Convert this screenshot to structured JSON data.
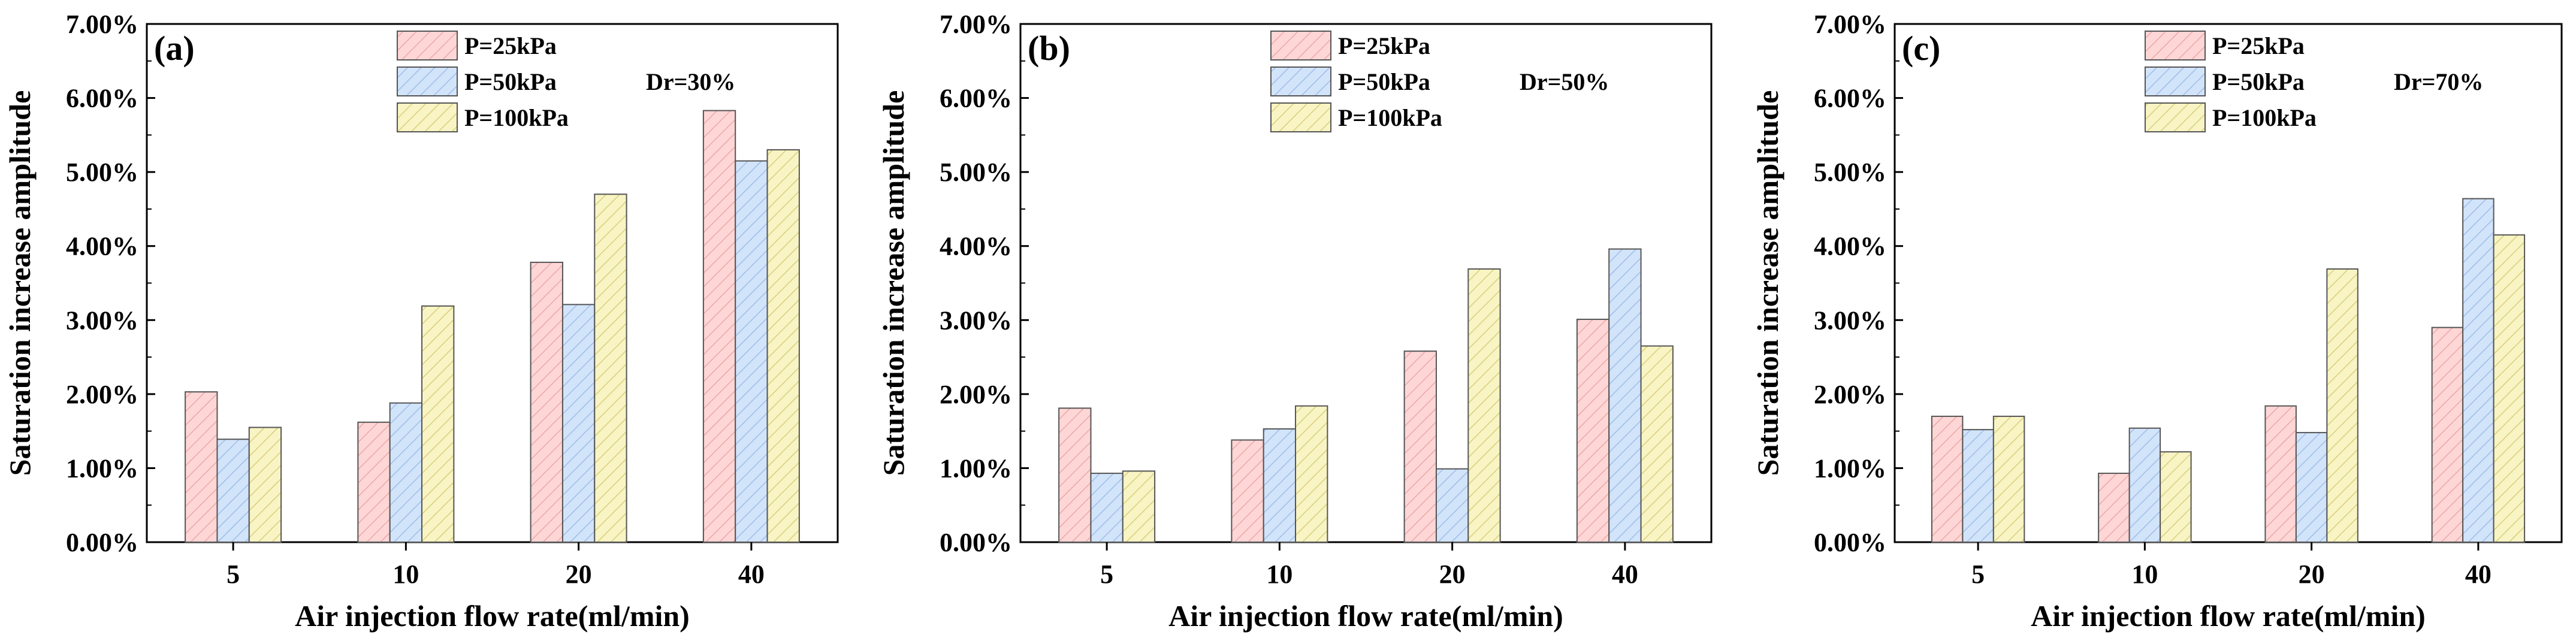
{
  "figure": {
    "ylabel": "Saturation increase amplitude",
    "xlabel": "Air injection flow rate(ml/min)"
  },
  "chart_data": [
    {
      "type": "bar",
      "panel_label": "(a)",
      "dr_label": "Dr=30%",
      "categories": [
        "5",
        "10",
        "20",
        "40"
      ],
      "series": [
        {
          "name": "P=25kPa",
          "values": [
            2.03,
            1.62,
            3.78,
            5.83
          ]
        },
        {
          "name": "P=50kPa",
          "values": [
            1.39,
            1.88,
            3.21,
            5.15
          ]
        },
        {
          "name": "P=100kPa",
          "values": [
            1.55,
            3.19,
            4.7,
            5.3
          ]
        }
      ],
      "ylim": [
        0,
        7
      ],
      "yticks": [
        "0.00%",
        "1.00%",
        "2.00%",
        "3.00%",
        "4.00%",
        "5.00%",
        "6.00%",
        "7.00%"
      ],
      "ylabel": "Saturation increase amplitude",
      "xlabel": "Air injection flow rate(ml/min)",
      "legend_position": "top"
    },
    {
      "type": "bar",
      "panel_label": "(b)",
      "dr_label": "Dr=50%",
      "categories": [
        "5",
        "10",
        "20",
        "40"
      ],
      "series": [
        {
          "name": "P=25kPa",
          "values": [
            1.81,
            1.38,
            2.58,
            3.01
          ]
        },
        {
          "name": "P=50kPa",
          "values": [
            0.93,
            1.53,
            0.99,
            3.96
          ]
        },
        {
          "name": "P=100kPa",
          "values": [
            0.96,
            1.84,
            3.69,
            2.65
          ]
        }
      ],
      "ylim": [
        0,
        7
      ],
      "yticks": [
        "0.00%",
        "1.00%",
        "2.00%",
        "3.00%",
        "4.00%",
        "5.00%",
        "6.00%",
        "7.00%"
      ],
      "ylabel": "Saturation increase amplitude",
      "xlabel": "Air injection flow rate(ml/min)",
      "legend_position": "top"
    },
    {
      "type": "bar",
      "panel_label": "(c)",
      "dr_label": "Dr=70%",
      "categories": [
        "5",
        "10",
        "20",
        "40"
      ],
      "series": [
        {
          "name": "P=25kPa",
          "values": [
            1.7,
            0.93,
            1.84,
            2.9
          ]
        },
        {
          "name": "P=50kPa",
          "values": [
            1.52,
            1.54,
            1.48,
            4.64
          ]
        },
        {
          "name": "P=100kPa",
          "values": [
            1.7,
            1.22,
            3.69,
            4.15
          ]
        }
      ],
      "ylim": [
        0,
        7
      ],
      "yticks": [
        "0.00%",
        "1.00%",
        "2.00%",
        "3.00%",
        "4.00%",
        "5.00%",
        "6.00%",
        "7.00%"
      ],
      "ylabel": "Saturation increase amplitude",
      "xlabel": "Air injection flow rate(ml/min)",
      "legend_position": "top"
    }
  ],
  "colors": {
    "series_fill": [
      "#ffd6d6",
      "#d2e4fa",
      "#f8f4c4"
    ],
    "series_hatch": [
      "#e8a8a8",
      "#9fbde8",
      "#d8cf7c"
    ],
    "edge": "#555555"
  }
}
